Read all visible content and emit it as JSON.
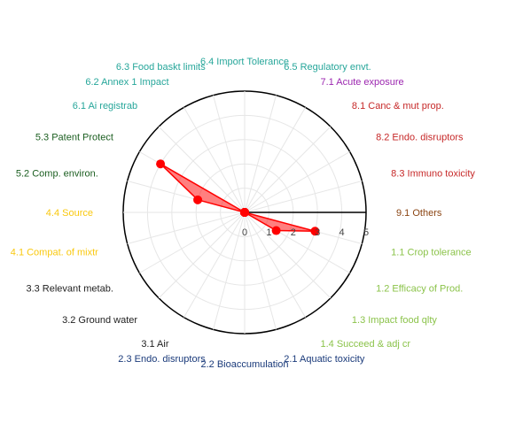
{
  "chart_data": {
    "type": "radar",
    "radial_axis": {
      "range": [
        0,
        5
      ],
      "ticks": [
        "0",
        "1",
        "2",
        "3",
        "4",
        "5"
      ],
      "grid": true
    },
    "categories": [
      {
        "label": "9.1 Others",
        "color": "#8b4513"
      },
      {
        "label": "8.3 Immuno toxicity",
        "color": "#c62828"
      },
      {
        "label": "8.2 Endo. disruptors",
        "color": "#c62828"
      },
      {
        "label": "8.1 Canc & mut prop.",
        "color": "#c62828"
      },
      {
        "label": "7.1 Acute exposure",
        "color": "#9c27b0"
      },
      {
        "label": "6.5 Regulatory envt.",
        "color": "#26a69a"
      },
      {
        "label": "6.4 Import Tolerance",
        "color": "#26a69a"
      },
      {
        "label": "6.3 Food baskt limits",
        "color": "#26a69a"
      },
      {
        "label": "6.2 Annex 1 Impact",
        "color": "#26a69a"
      },
      {
        "label": "6.1 Ai registrab",
        "color": "#26a69a"
      },
      {
        "label": "5.3 Patent Protect",
        "color": "#1b5e20"
      },
      {
        "label": "5.2 Comp. environ.",
        "color": "#1b5e20"
      },
      {
        "label": "4.4 Source",
        "color": "#f9c80e"
      },
      {
        "label": "4.1 Compat. of mixtr",
        "color": "#f9c80e"
      },
      {
        "label": "3.3 Relevant metab.",
        "color": "#222222"
      },
      {
        "label": "3.2 Ground water",
        "color": "#222222"
      },
      {
        "label": "3.1 Air",
        "color": "#222222"
      },
      {
        "label": "2.3 Endo. disruptors",
        "color": "#1a3a7a"
      },
      {
        "label": "2.2 Bioaccumulation",
        "color": "#1a3a7a"
      },
      {
        "label": "2.1 Aquatic toxicity",
        "color": "#1a3a7a"
      },
      {
        "label": "1.4 Succeed & adj cr",
        "color": "#8bc34a"
      },
      {
        "label": "1.3 Impact food qlty",
        "color": "#8bc34a"
      },
      {
        "label": "1.2 Efficacy of Prod.",
        "color": "#8bc34a"
      },
      {
        "label": "1.1 Crop tolerance",
        "color": "#8bc34a"
      }
    ],
    "series": [
      {
        "color": "#ff0000",
        "values": [
          0,
          0,
          0,
          0,
          0,
          0,
          0,
          0,
          0,
          0,
          4,
          2,
          0,
          0,
          0,
          0,
          0,
          0,
          0,
          0,
          0,
          0,
          1.5,
          3
        ]
      }
    ]
  }
}
